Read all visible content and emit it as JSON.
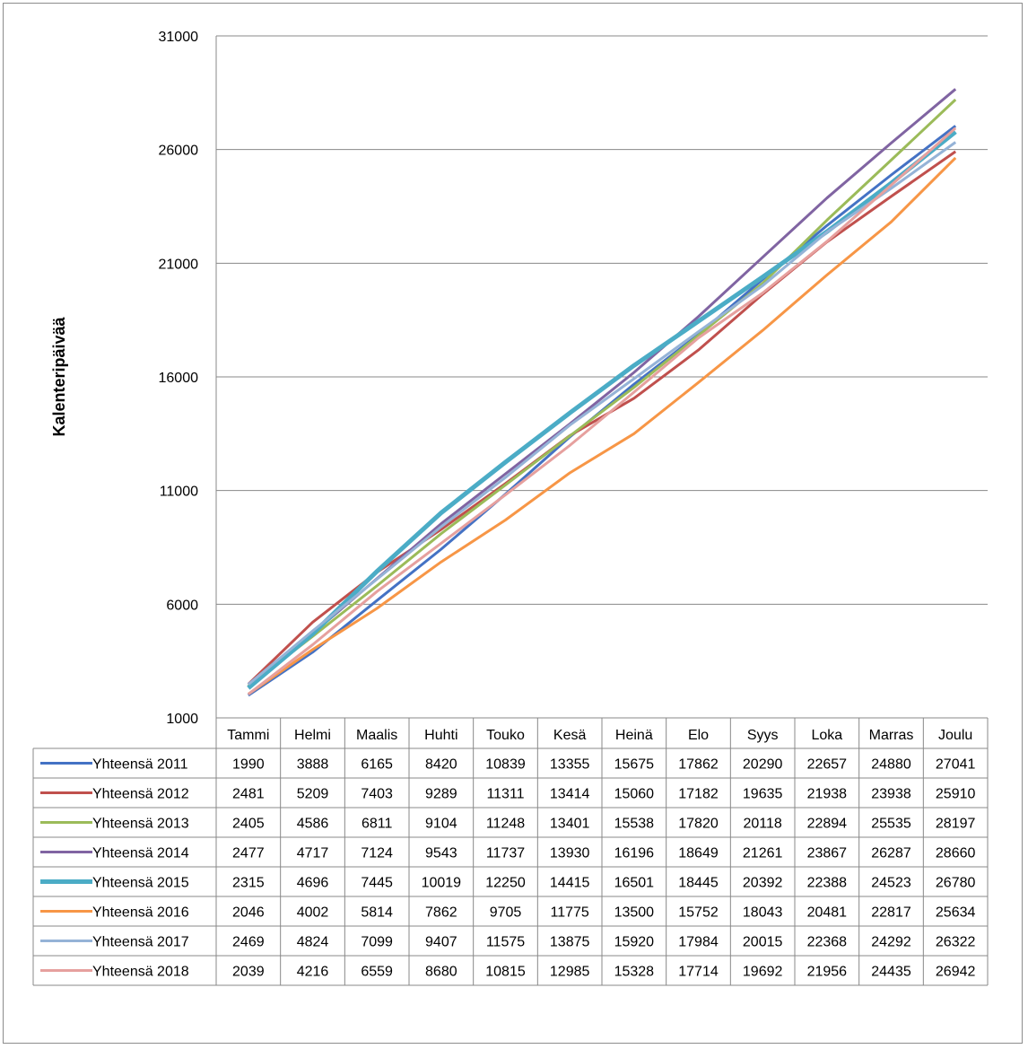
{
  "chart_data": {
    "type": "line",
    "ylabel": "Kalenteripäivää",
    "ylim": [
      1000,
      31000
    ],
    "yticks": [
      1000,
      6000,
      11000,
      16000,
      21000,
      26000,
      31000
    ],
    "grid": true,
    "legend": "data-table",
    "categories": [
      "Tammi",
      "Helmi",
      "Maalis",
      "Huhti",
      "Touko",
      "Kesä",
      "Heinä",
      "Elo",
      "Syys",
      "Loka",
      "Marras",
      "Joulu"
    ],
    "series": [
      {
        "name": "Yhteensä 2011",
        "color": "#4472C4",
        "values": [
          1990,
          3888,
          6165,
          8420,
          10839,
          13355,
          15675,
          17862,
          20290,
          22657,
          24880,
          27041
        ]
      },
      {
        "name": "Yhteensä 2012",
        "color": "#C0504D",
        "values": [
          2481,
          5209,
          7403,
          9289,
          11311,
          13414,
          15060,
          17182,
          19635,
          21938,
          23938,
          25910
        ]
      },
      {
        "name": "Yhteensä 2013",
        "color": "#9BBB59",
        "values": [
          2405,
          4586,
          6811,
          9104,
          11248,
          13401,
          15538,
          17820,
          20118,
          22894,
          25535,
          28197
        ]
      },
      {
        "name": "Yhteensä 2014",
        "color": "#8064A2",
        "values": [
          2477,
          4717,
          7124,
          9543,
          11737,
          13930,
          16196,
          18649,
          21261,
          23867,
          26287,
          28660
        ]
      },
      {
        "name": "Yhteensä 2015",
        "color": "#4BACC6",
        "values": [
          2315,
          4696,
          7445,
          10019,
          12250,
          14415,
          16501,
          18445,
          20392,
          22388,
          24523,
          26780
        ]
      },
      {
        "name": "Yhteensä 2016",
        "color": "#F79646",
        "values": [
          2046,
          4002,
          5814,
          7862,
          9705,
          11775,
          13500,
          15752,
          18043,
          20481,
          22817,
          25634
        ]
      },
      {
        "name": "Yhteensä 2017",
        "color": "#95B3D7",
        "values": [
          2469,
          4824,
          7099,
          9407,
          11575,
          13875,
          15920,
          17984,
          20015,
          22368,
          24292,
          26322
        ]
      },
      {
        "name": "Yhteensä 2018",
        "color": "#E6A09E",
        "values": [
          2039,
          4216,
          6559,
          8680,
          10815,
          12985,
          15328,
          17714,
          19692,
          21956,
          24435,
          26942
        ]
      }
    ]
  }
}
